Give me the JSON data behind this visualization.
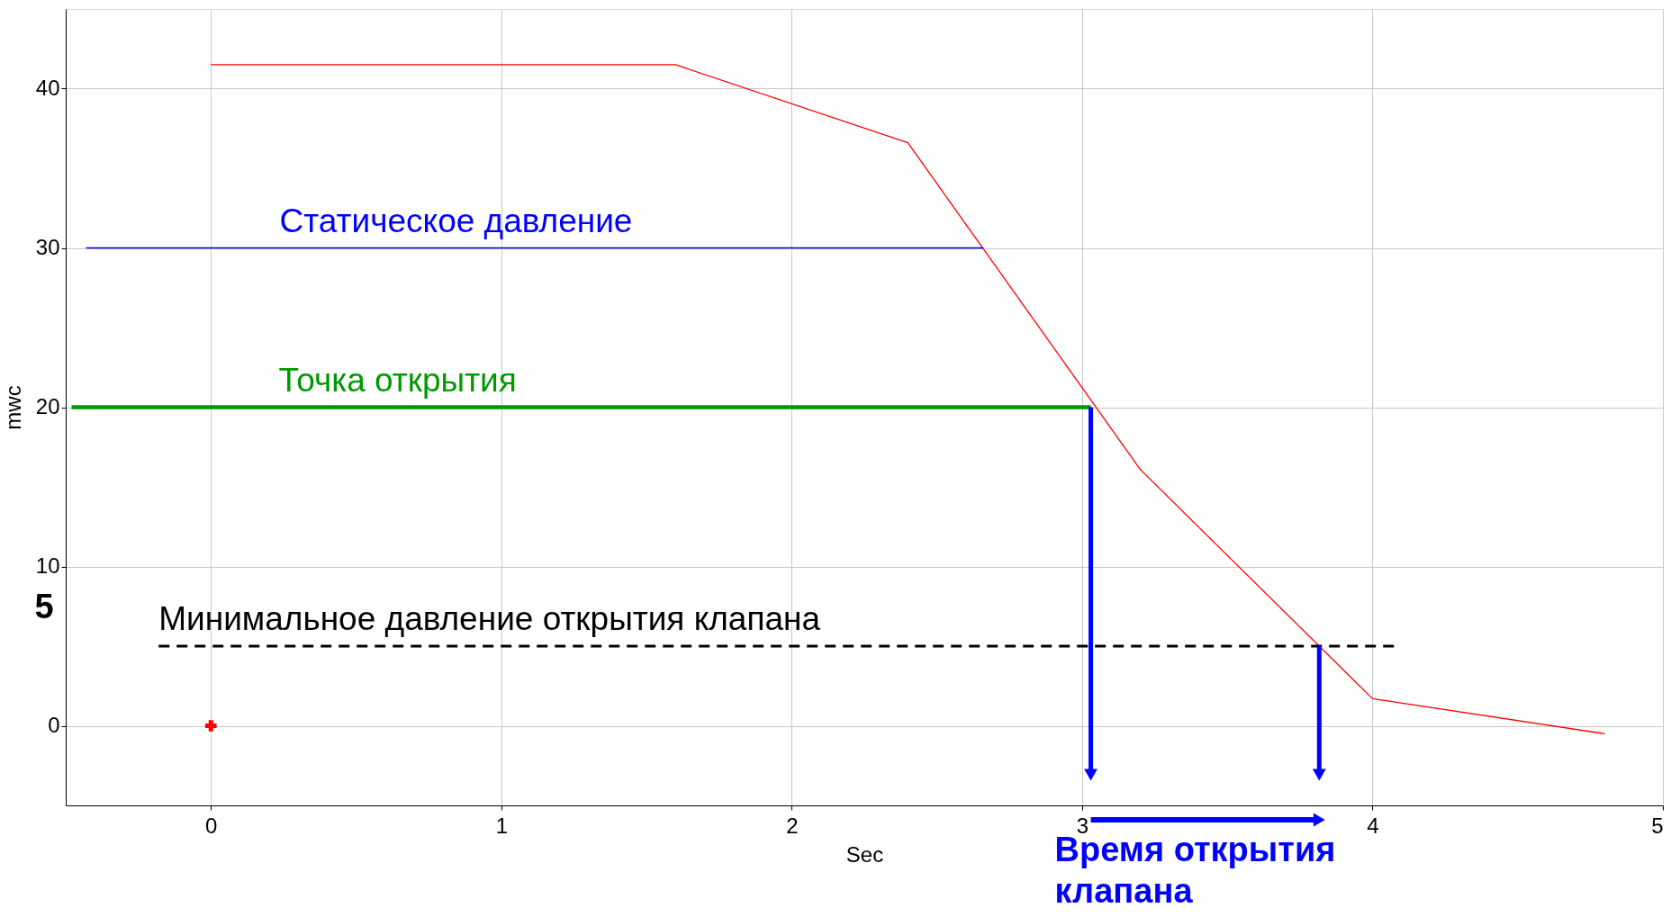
{
  "chart_data": {
    "type": "line",
    "xlabel": "Sec",
    "ylabel": "mwc",
    "xlim": [
      -0.5,
      5
    ],
    "ylim": [
      -5,
      45
    ],
    "xticks": [
      0,
      1,
      2,
      3,
      4,
      5
    ],
    "yticks": [
      0,
      10,
      20,
      30,
      40
    ],
    "grid": true,
    "series": [
      {
        "color": "#ff0000",
        "x": [
          0,
          1.6,
          2.4,
          3.2,
          4,
          4.8
        ],
        "values": [
          41.5,
          41.5,
          36.6,
          16.1,
          1.7,
          -0.5
        ]
      },
      {
        "name": "Статическое давление",
        "color": "#0000ff",
        "x": [
          -0.43,
          2.66
        ],
        "values": [
          30,
          30
        ]
      },
      {
        "name": "Точка открытия",
        "color": "#009900",
        "x": [
          -0.48,
          3.03
        ],
        "values": [
          20,
          20
        ]
      },
      {
        "name": "Минимальное давление открытия клапана",
        "color": "#000000",
        "x": [
          -0.18,
          4.08
        ],
        "values": [
          5,
          5
        ],
        "line_style": "dashed"
      },
      {
        "type": "scatter",
        "marker": "cross",
        "color": "#ff0000",
        "x": [
          0
        ],
        "values": [
          0
        ]
      }
    ],
    "annotations": [
      "5",
      "Время открытия клапана"
    ]
  }
}
